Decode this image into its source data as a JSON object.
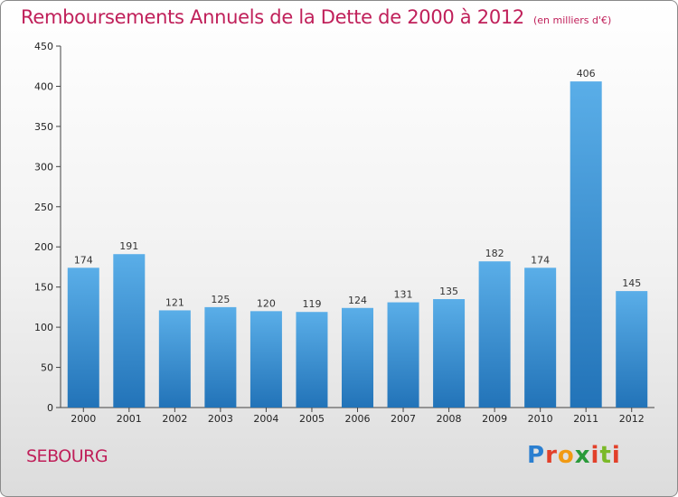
{
  "header": {
    "title": "Remboursements Annuels de la Dette de 2000 à 2012",
    "unit": "(en milliers d'€)"
  },
  "footer": {
    "commune": "SEBOURG",
    "logo": {
      "p": "P",
      "r": "r",
      "o": "o",
      "x": "x",
      "i": "i",
      "t": "t",
      "i2": "i"
    }
  },
  "colors": {
    "title": "#c0205a",
    "bar_top": "#5aaee8",
    "bar_bottom": "#2273b8",
    "axis": "#444444",
    "grid": "#aaaaaa"
  },
  "chart_data": {
    "type": "bar",
    "title": "Remboursements Annuels de la Dette de 2000 à 2012",
    "xlabel": "",
    "ylabel": "",
    "categories": [
      "2000",
      "2001",
      "2002",
      "2003",
      "2004",
      "2005",
      "2006",
      "2007",
      "2008",
      "2009",
      "2010",
      "2011",
      "2012"
    ],
    "values": [
      174,
      191,
      121,
      125,
      120,
      119,
      124,
      131,
      135,
      182,
      174,
      406,
      145
    ],
    "ylim": [
      0,
      450
    ],
    "yticks": [
      0,
      50,
      100,
      150,
      200,
      250,
      300,
      350,
      400,
      450
    ],
    "grid": false,
    "legend": "none"
  }
}
